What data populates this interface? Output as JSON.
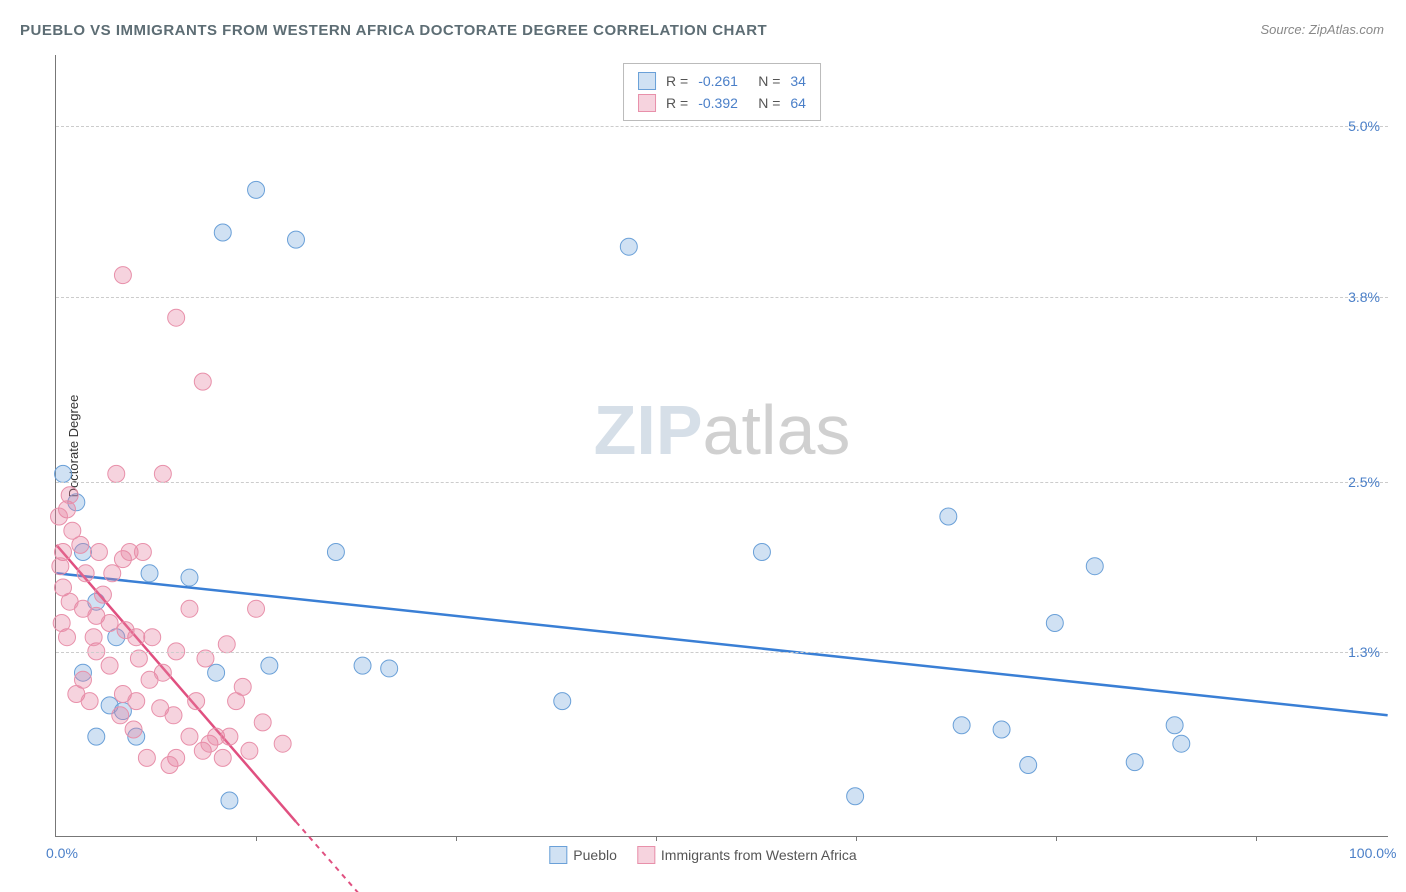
{
  "title": "PUEBLO VS IMMIGRANTS FROM WESTERN AFRICA DOCTORATE DEGREE CORRELATION CHART",
  "source_prefix": "Source: ",
  "source_name": "ZipAtlas.com",
  "y_axis_label": "Doctorate Degree",
  "watermark_zip": "ZIP",
  "watermark_atlas": "atlas",
  "xlim": [
    0,
    100
  ],
  "ylim": [
    0,
    5.5
  ],
  "x_tick_labels": [
    "0.0%",
    "100.0%"
  ],
  "x_tick_positions": [
    0,
    100
  ],
  "x_minor_ticks": [
    15,
    30,
    45,
    60,
    75,
    90
  ],
  "y_grid_values": [
    1.3,
    2.5,
    3.8,
    5.0
  ],
  "y_tick_labels": [
    "1.3%",
    "2.5%",
    "3.8%",
    "5.0%"
  ],
  "series": [
    {
      "name": "Pueblo",
      "label": "Pueblo",
      "fill_color": "rgba(120,170,220,0.35)",
      "stroke_color": "#6aa0d8",
      "line_color": "#3a7fd5",
      "R": "-0.261",
      "N": "34",
      "trend_start": {
        "x": 0,
        "y": 1.85
      },
      "trend_end": {
        "x": 100,
        "y": 0.85
      },
      "marker_radius": 8.5,
      "points": [
        {
          "x": 0.5,
          "y": 2.55
        },
        {
          "x": 1.5,
          "y": 2.35
        },
        {
          "x": 15,
          "y": 4.55
        },
        {
          "x": 12.5,
          "y": 4.25
        },
        {
          "x": 18,
          "y": 4.2
        },
        {
          "x": 43,
          "y": 4.15
        },
        {
          "x": 2,
          "y": 1.15
        },
        {
          "x": 4,
          "y": 0.92
        },
        {
          "x": 5,
          "y": 0.88
        },
        {
          "x": 3,
          "y": 1.65
        },
        {
          "x": 7,
          "y": 1.85
        },
        {
          "x": 10,
          "y": 1.82
        },
        {
          "x": 12,
          "y": 1.15
        },
        {
          "x": 21,
          "y": 2.0
        },
        {
          "x": 23,
          "y": 1.2
        },
        {
          "x": 25,
          "y": 1.18
        },
        {
          "x": 38,
          "y": 0.95
        },
        {
          "x": 53,
          "y": 2.0
        },
        {
          "x": 60,
          "y": 0.28
        },
        {
          "x": 67,
          "y": 2.25
        },
        {
          "x": 68,
          "y": 0.78
        },
        {
          "x": 71,
          "y": 0.75
        },
        {
          "x": 73,
          "y": 0.5
        },
        {
          "x": 75,
          "y": 1.5
        },
        {
          "x": 78,
          "y": 1.9
        },
        {
          "x": 81,
          "y": 0.52
        },
        {
          "x": 84,
          "y": 0.78
        },
        {
          "x": 84.5,
          "y": 0.65
        },
        {
          "x": 3,
          "y": 0.7
        },
        {
          "x": 6,
          "y": 0.7
        },
        {
          "x": 2,
          "y": 2.0
        },
        {
          "x": 13,
          "y": 0.25
        },
        {
          "x": 16,
          "y": 1.2
        },
        {
          "x": 4.5,
          "y": 1.4
        }
      ]
    },
    {
      "name": "Immigrants from Western Africa",
      "label": "Immigrants from Western Africa",
      "fill_color": "rgba(230,130,160,0.35)",
      "stroke_color": "#e890aa",
      "line_color": "#e05080",
      "R": "-0.392",
      "N": "64",
      "trend_start": {
        "x": 0,
        "y": 2.05
      },
      "trend_end": {
        "x": 18,
        "y": 0.1
      },
      "trend_dash_end": {
        "x": 25,
        "y": -0.65
      },
      "marker_radius": 8.5,
      "points": [
        {
          "x": 0.5,
          "y": 2.0
        },
        {
          "x": 0.8,
          "y": 2.3
        },
        {
          "x": 0.3,
          "y": 1.9
        },
        {
          "x": 1,
          "y": 2.4
        },
        {
          "x": 0.5,
          "y": 1.75
        },
        {
          "x": 5,
          "y": 3.95
        },
        {
          "x": 9,
          "y": 3.65
        },
        {
          "x": 4.5,
          "y": 2.55
        },
        {
          "x": 8,
          "y": 2.55
        },
        {
          "x": 11,
          "y": 3.2
        },
        {
          "x": 2,
          "y": 1.6
        },
        {
          "x": 3,
          "y": 1.55
        },
        {
          "x": 4,
          "y": 1.5
        },
        {
          "x": 5,
          "y": 1.95
        },
        {
          "x": 5.5,
          "y": 2.0
        },
        {
          "x": 6,
          "y": 1.4
        },
        {
          "x": 3,
          "y": 1.3
        },
        {
          "x": 4,
          "y": 1.2
        },
        {
          "x": 2,
          "y": 1.1
        },
        {
          "x": 5,
          "y": 1.0
        },
        {
          "x": 6,
          "y": 0.95
        },
        {
          "x": 7,
          "y": 1.1
        },
        {
          "x": 8,
          "y": 1.15
        },
        {
          "x": 9,
          "y": 0.55
        },
        {
          "x": 10,
          "y": 0.7
        },
        {
          "x": 11,
          "y": 0.6
        },
        {
          "x": 11.5,
          "y": 0.65
        },
        {
          "x": 12,
          "y": 0.7
        },
        {
          "x": 13,
          "y": 0.7
        },
        {
          "x": 14,
          "y": 1.05
        },
        {
          "x": 14.5,
          "y": 0.6
        },
        {
          "x": 15,
          "y": 1.6
        },
        {
          "x": 10,
          "y": 1.6
        },
        {
          "x": 9,
          "y": 1.3
        },
        {
          "x": 17,
          "y": 0.65
        },
        {
          "x": 8.5,
          "y": 0.5
        },
        {
          "x": 0.8,
          "y": 1.4
        },
        {
          "x": 1.5,
          "y": 1.0
        },
        {
          "x": 2.5,
          "y": 0.95
        },
        {
          "x": 3.5,
          "y": 1.7
        },
        {
          "x": 6.5,
          "y": 2.0
        },
        {
          "x": 1.2,
          "y": 2.15
        },
        {
          "x": 0.2,
          "y": 2.25
        },
        {
          "x": 1.8,
          "y": 2.05
        },
        {
          "x": 2.2,
          "y": 1.85
        },
        {
          "x": 3.2,
          "y": 2.0
        },
        {
          "x": 4.2,
          "y": 1.85
        },
        {
          "x": 5.2,
          "y": 1.45
        },
        {
          "x": 6.2,
          "y": 1.25
        },
        {
          "x": 7.2,
          "y": 1.4
        },
        {
          "x": 4.8,
          "y": 0.85
        },
        {
          "x": 5.8,
          "y": 0.75
        },
        {
          "x": 6.8,
          "y": 0.55
        },
        {
          "x": 12.5,
          "y": 0.55
        },
        {
          "x": 13.5,
          "y": 0.95
        },
        {
          "x": 10.5,
          "y": 0.95
        },
        {
          "x": 1.0,
          "y": 1.65
        },
        {
          "x": 0.4,
          "y": 1.5
        },
        {
          "x": 2.8,
          "y": 1.4
        },
        {
          "x": 7.8,
          "y": 0.9
        },
        {
          "x": 8.8,
          "y": 0.85
        },
        {
          "x": 11.2,
          "y": 1.25
        },
        {
          "x": 12.8,
          "y": 1.35
        },
        {
          "x": 15.5,
          "y": 0.8
        }
      ]
    }
  ],
  "legend_top_stats": [
    {
      "series_index": 0,
      "R_label": "R =",
      "N_label": "N ="
    },
    {
      "series_index": 1,
      "R_label": "R =",
      "N_label": "N ="
    }
  ]
}
